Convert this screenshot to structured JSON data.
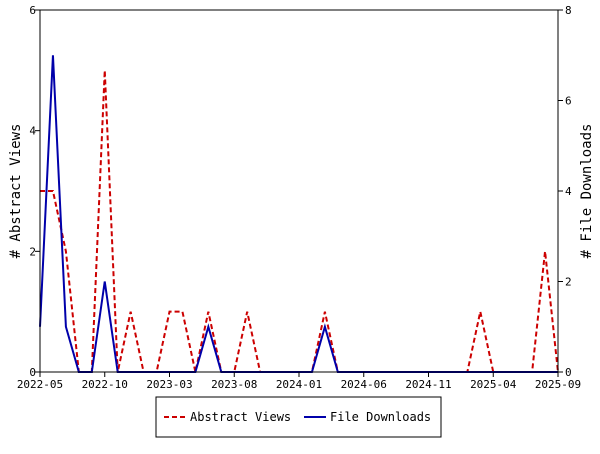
{
  "chart_data": {
    "type": "line",
    "x_tick_labels": [
      "2022-05",
      "2022-10",
      "2023-03",
      "2023-08",
      "2024-01",
      "2024-06",
      "2024-11",
      "2025-04",
      "2025-09"
    ],
    "x": [
      "2022-05",
      "2022-06",
      "2022-07",
      "2022-08",
      "2022-09",
      "2022-10",
      "2022-11",
      "2022-12",
      "2023-01",
      "2023-02",
      "2023-03",
      "2023-04",
      "2023-05",
      "2023-06",
      "2023-07",
      "2023-08",
      "2023-09",
      "2023-10",
      "2023-11",
      "2023-12",
      "2024-01",
      "2024-02",
      "2024-03",
      "2024-04",
      "2024-05",
      "2024-06",
      "2024-07",
      "2024-08",
      "2024-09",
      "2024-10",
      "2024-11",
      "2024-12",
      "2025-01",
      "2025-02",
      "2025-03",
      "2025-04",
      "2025-05",
      "2025-06",
      "2025-07",
      "2025-08",
      "2025-09"
    ],
    "left_axis": {
      "label": "# Abstract Views",
      "ylim": [
        0,
        6
      ],
      "ticks": [
        "0",
        "2",
        "4",
        "6"
      ]
    },
    "right_axis": {
      "label": "# File Downloads",
      "ylim": [
        0,
        8
      ],
      "ticks": [
        "0",
        "2",
        "4",
        "6",
        "8"
      ]
    },
    "series": [
      {
        "name": "Abstract Views",
        "axis": "left",
        "color": "#cc0000",
        "dash": "dashed",
        "values": [
          3,
          3,
          2,
          0,
          0,
          5,
          0,
          1,
          0,
          0,
          1,
          1,
          0,
          1,
          0,
          0,
          1,
          0,
          0,
          0,
          0,
          0,
          1,
          0,
          0,
          0,
          0,
          0,
          0,
          0,
          0,
          0,
          0,
          0,
          1,
          0,
          0,
          0,
          0,
          2,
          0
        ]
      },
      {
        "name": "File Downloads",
        "axis": "right",
        "color": "#0000aa",
        "dash": "solid",
        "values": [
          1,
          7,
          1,
          0,
          0,
          2,
          0,
          0,
          0,
          0,
          0,
          0,
          0,
          1,
          0,
          0,
          0,
          0,
          0,
          0,
          0,
          0,
          1,
          0,
          0,
          0,
          0,
          0,
          0,
          0,
          0,
          0,
          0,
          0,
          0,
          0,
          0,
          0,
          0,
          0,
          0
        ]
      }
    ],
    "legend_position": "bottom-center",
    "grid": false
  }
}
